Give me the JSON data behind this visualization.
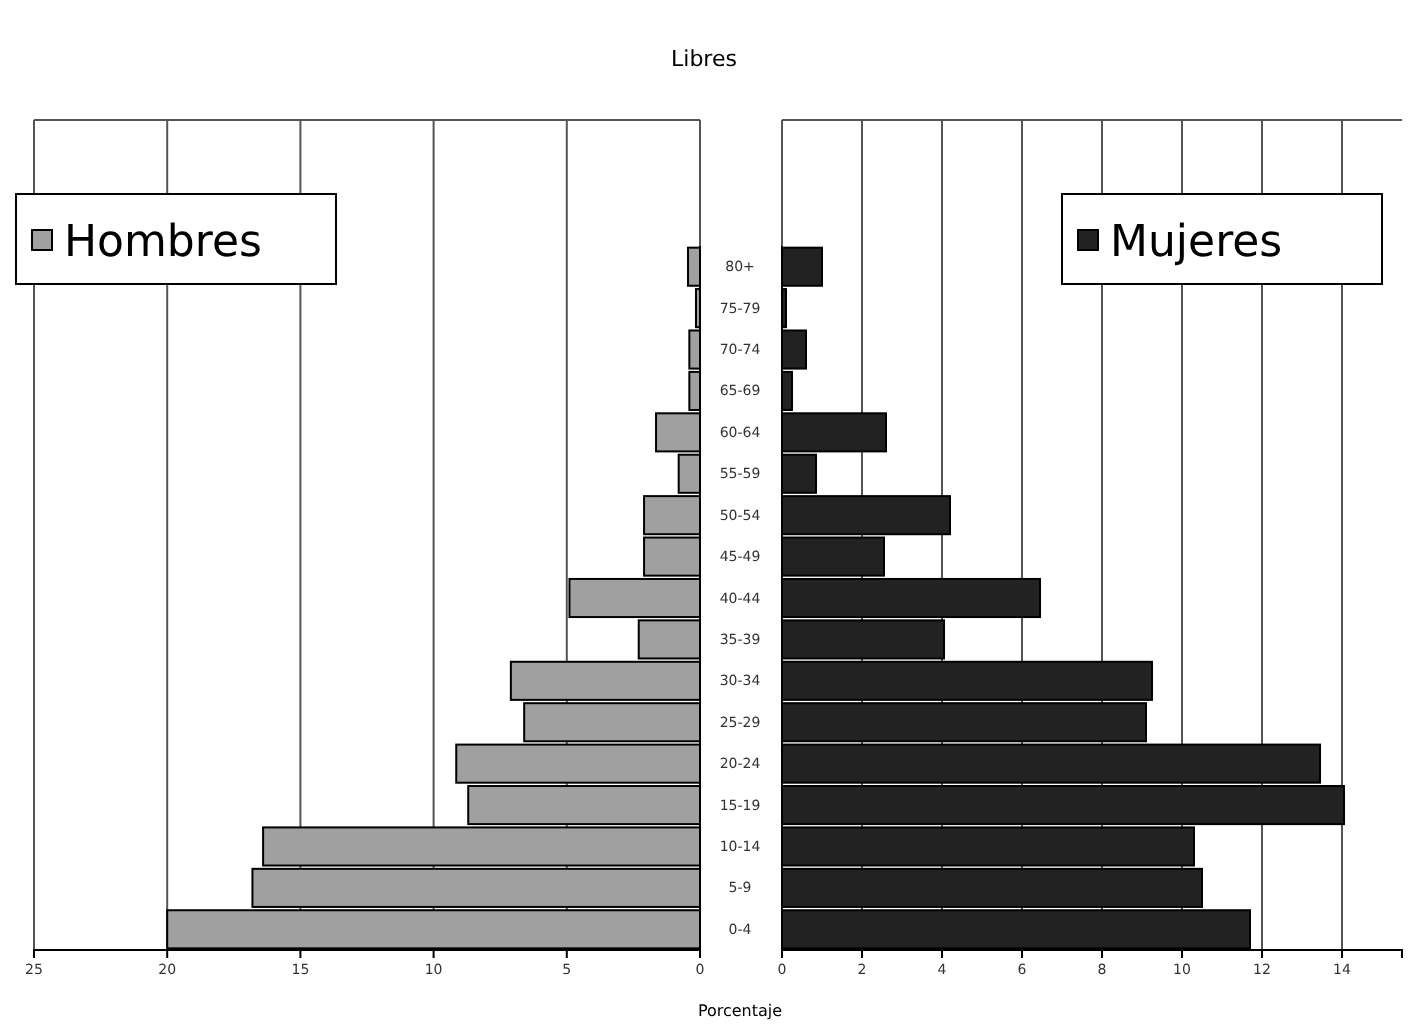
{
  "chart_data": [
    {
      "type": "bar",
      "orientation": "horizontal",
      "title": "Libres",
      "categories": [
        "80+",
        "75-79",
        "70-74",
        "65-69",
        "60-64",
        "55-59",
        "50-54",
        "45-49",
        "40-44",
        "35-39",
        "30-34",
        "25-29",
        "20-24",
        "15-19",
        "10-14",
        "5-9",
        "0-4"
      ],
      "series": [
        {
          "name": "Hombres",
          "color": "#a0a0a0",
          "values": [
            0.45,
            0.15,
            0.4,
            0.4,
            1.65,
            0.8,
            2.1,
            2.1,
            4.9,
            2.3,
            7.1,
            6.6,
            9.15,
            8.7,
            16.4,
            16.8,
            20.0
          ]
        }
      ],
      "xlim": [
        25,
        0
      ],
      "xticks": [
        25,
        20,
        15,
        10,
        5,
        0
      ],
      "grid": "x",
      "legend": "top left"
    },
    {
      "type": "bar",
      "orientation": "horizontal",
      "xlabel": "Porcentaje",
      "tick_labels": "x",
      "series": [
        {
          "name": "Mujeres",
          "color": "#222222",
          "values": [
            1.0,
            0.1,
            0.6,
            0.25,
            2.6,
            0.85,
            4.2,
            2.55,
            6.45,
            4.05,
            9.25,
            9.1,
            13.45,
            14.05,
            10.3,
            10.5,
            11.7
          ]
        }
      ],
      "xlim": [
        0,
        15.5
      ],
      "xticks": [
        0,
        2,
        4,
        6,
        8,
        10,
        12,
        14
      ],
      "grid": "x",
      "legend": "top right"
    }
  ]
}
